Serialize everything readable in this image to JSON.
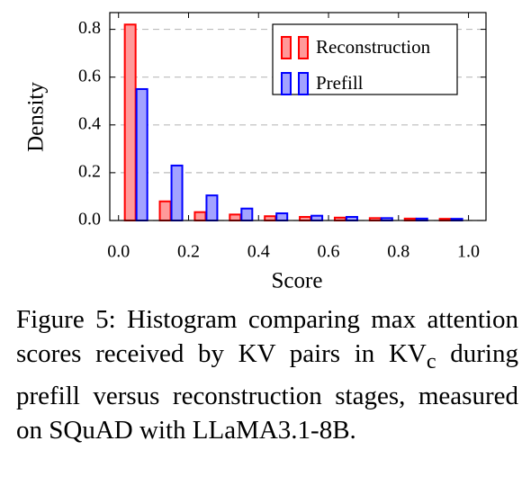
{
  "chart_data": {
    "type": "histogram",
    "xlabel": "Score",
    "ylabel": "Density",
    "bins": [
      0,
      0.1,
      0.2,
      0.3,
      0.4,
      0.5,
      0.6,
      0.7,
      0.8,
      0.9,
      1.0
    ],
    "series": [
      {
        "name": "Reconstruction",
        "color": "#ff0000",
        "fill": "#ff9a9a",
        "values": [
          0.82,
          0.08,
          0.035,
          0.025,
          0.018,
          0.015,
          0.012,
          0.01,
          0.008,
          0.007
        ]
      },
      {
        "name": "Prefill",
        "color": "#0000ff",
        "fill": "#a3a3ff",
        "values": [
          0.55,
          0.23,
          0.105,
          0.05,
          0.03,
          0.02,
          0.015,
          0.01,
          0.008,
          0.007
        ]
      }
    ],
    "xlim": [
      -0.025,
      1.05
    ],
    "ylim": [
      0,
      0.87
    ],
    "xticks": [
      {
        "value": 0,
        "label": "0.0"
      },
      0.2,
      0.4,
      0.6,
      0.8,
      {
        "value": 1,
        "label": "1.0"
      }
    ],
    "yticks": [
      {
        "value": 0,
        "label": "0.0"
      },
      0.2,
      0.4,
      0.6,
      0.8
    ],
    "grid": true,
    "legend": "upper right",
    "caption": [
      "Figure 5:  Histogram comparing max attention scores received by KV pairs in KV",
      "c",
      " during prefill versus reconstruction stages, measured on SQuAD with LLaMA3.1-8B."
    ]
  }
}
